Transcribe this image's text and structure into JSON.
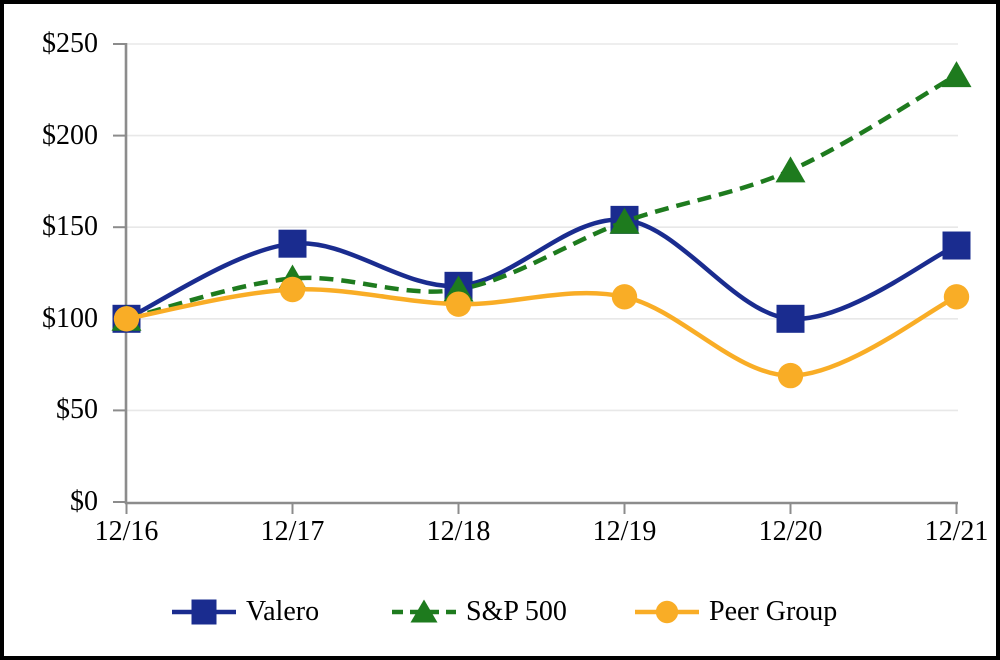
{
  "chart_data": {
    "type": "line",
    "title": "",
    "categories": [
      "12/16",
      "12/17",
      "12/18",
      "12/19",
      "12/20",
      "12/21"
    ],
    "series": [
      {
        "name": "Valero",
        "values": [
          100,
          141,
          118,
          154,
          100,
          140
        ],
        "color": "#1A2C8F",
        "marker": "square",
        "line_style": "solid"
      },
      {
        "name": "S&P 500",
        "values": [
          100,
          122,
          116,
          153,
          181,
          233
        ],
        "color": "#1E7B1E",
        "marker": "triangle",
        "line_style": "dashed"
      },
      {
        "name": "Peer Group",
        "values": [
          100,
          116,
          108,
          112,
          69,
          112
        ],
        "color": "#F9AD26",
        "marker": "circle",
        "line_style": "solid"
      }
    ],
    "xlabel": "",
    "ylabel": "",
    "ylim": [
      0,
      250
    ],
    "ytick_labels": [
      "$0",
      "$50",
      "$100",
      "$150",
      "$200",
      "$250"
    ],
    "grid": "horizontal",
    "legend_position": "bottom",
    "smooth_lines": true
  },
  "styles": {
    "gridline_color": "#E8E8E8",
    "axis_color": "#8C8C8C",
    "text_color": "#000000",
    "frame_color": "#000000",
    "background": "#FFFFFF"
  }
}
